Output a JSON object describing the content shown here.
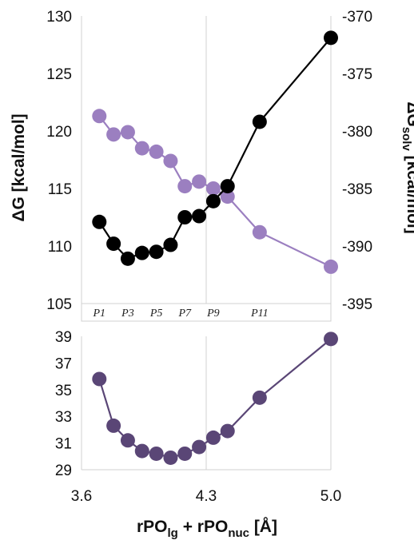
{
  "chart_data": [
    {
      "type": "line",
      "panel": "top",
      "x": [
        3.7,
        3.78,
        3.86,
        3.94,
        4.02,
        4.1,
        4.18,
        4.26,
        4.34,
        4.42,
        4.6,
        5.0
      ],
      "ylabel_left": "ΔG [kcal/mol]",
      "ylabel_right_main": "ΔG",
      "ylabel_right_sub": "solv",
      "ylabel_right_unit": " [kcal/mol]",
      "ylim_left": [
        105,
        130
      ],
      "yticks_left": [
        "105",
        "110",
        "115",
        "120",
        "125",
        "130"
      ],
      "ylim_right": [
        -395,
        -370
      ],
      "yticks_right": [
        "-395",
        "-390",
        "-385",
        "-380",
        "-375",
        "-370"
      ],
      "grid": "vertical",
      "series": [
        {
          "axis": "left",
          "color": "#000000",
          "values": [
            112.1,
            110.2,
            108.9,
            109.4,
            109.5,
            110.1,
            112.5,
            112.6,
            113.9,
            115.2,
            120.8,
            128.1
          ]
        },
        {
          "axis": "right",
          "color": "#9b7fc0",
          "values": [
            -378.7,
            -380.3,
            -380.1,
            -381.5,
            -381.8,
            -382.6,
            -384.8,
            -384.4,
            -385.0,
            -385.7,
            -388.8,
            -391.8
          ]
        }
      ],
      "point_labels": [
        {
          "text": "P1",
          "x": 3.7
        },
        {
          "text": "P3",
          "x": 3.86
        },
        {
          "text": "P5",
          "x": 4.02
        },
        {
          "text": "P7",
          "x": 4.18
        },
        {
          "text": "P9",
          "x": 4.34
        },
        {
          "text": "P11",
          "x": 4.6
        }
      ]
    },
    {
      "type": "line",
      "panel": "bottom",
      "x": [
        3.7,
        3.78,
        3.86,
        3.94,
        4.02,
        4.1,
        4.18,
        4.26,
        4.34,
        4.42,
        4.6,
        5.0
      ],
      "xlim": [
        3.6,
        5.0
      ],
      "xticks": [
        "3.6",
        "4.3",
        "5.0"
      ],
      "xtick_values": [
        3.6,
        4.3,
        5.0
      ],
      "xlabel_parts": [
        "rPO",
        "lg",
        " + rPO",
        "nuc",
        " [Å]"
      ],
      "ylim": [
        29,
        39
      ],
      "yticks": [
        "29",
        "31",
        "33",
        "35",
        "37",
        "39"
      ],
      "grid": "vertical",
      "series": [
        {
          "color": "#5a4676",
          "values": [
            35.8,
            32.3,
            31.2,
            30.4,
            30.2,
            29.9,
            30.2,
            30.7,
            31.4,
            31.9,
            34.4,
            38.8
          ]
        }
      ]
    }
  ]
}
